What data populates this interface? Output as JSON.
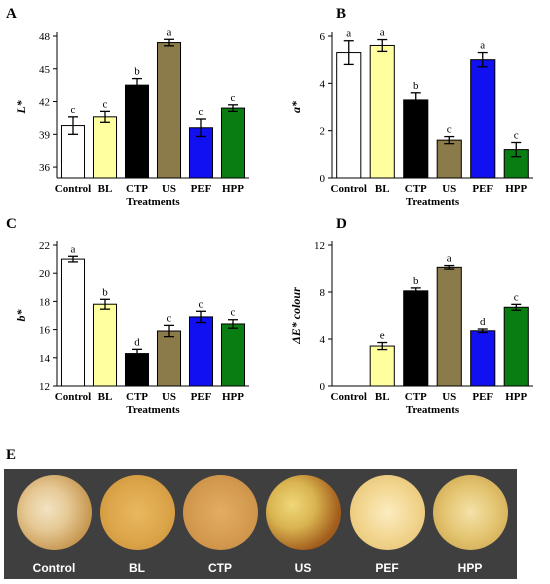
{
  "chart_data": [
    {
      "panel": "A",
      "type": "bar",
      "ylabel": "L*",
      "xlabel": "Treatments",
      "categories": [
        "Control",
        "BL",
        "CTP",
        "US",
        "PEF",
        "HPP"
      ],
      "values": [
        39.8,
        40.6,
        43.5,
        47.4,
        39.6,
        41.4
      ],
      "errors": [
        0.8,
        0.5,
        0.6,
        0.3,
        0.8,
        0.3
      ],
      "letters": [
        "c",
        "c",
        "b",
        "a",
        "c",
        "c"
      ],
      "colors": [
        "#ffffff",
        "#ffffa0",
        "#000000",
        "#8b7b4b",
        "#1010f0",
        "#0a7d12"
      ],
      "ylim": [
        35,
        48
      ],
      "yticks": [
        36,
        39,
        42,
        45,
        48
      ]
    },
    {
      "panel": "B",
      "type": "bar",
      "ylabel": "a*",
      "xlabel": "Treatments",
      "categories": [
        "Control",
        "BL",
        "CTP",
        "US",
        "PEF",
        "HPP"
      ],
      "values": [
        5.3,
        5.6,
        3.3,
        1.6,
        5.0,
        1.2
      ],
      "errors": [
        0.5,
        0.25,
        0.3,
        0.15,
        0.3,
        0.3
      ],
      "letters": [
        "a",
        "a",
        "b",
        "c",
        "a",
        "c"
      ],
      "colors": [
        "#ffffff",
        "#ffffa0",
        "#000000",
        "#8b7b4b",
        "#1010f0",
        "#0a7d12"
      ],
      "ylim": [
        0,
        6
      ],
      "yticks": [
        0,
        2,
        4,
        6
      ]
    },
    {
      "panel": "C",
      "type": "bar",
      "ylabel": "b*",
      "xlabel": "Treatments",
      "categories": [
        "Control",
        "BL",
        "CTP",
        "US",
        "PEF",
        "HPP"
      ],
      "values": [
        21.0,
        17.8,
        14.3,
        15.9,
        16.9,
        16.4
      ],
      "errors": [
        0.2,
        0.35,
        0.3,
        0.4,
        0.4,
        0.3
      ],
      "letters": [
        "a",
        "b",
        "d",
        "c",
        "c",
        "c"
      ],
      "colors": [
        "#ffffff",
        "#ffffa0",
        "#000000",
        "#8b7b4b",
        "#1010f0",
        "#0a7d12"
      ],
      "ylim": [
        12,
        22
      ],
      "yticks": [
        12,
        14,
        16,
        18,
        20,
        22
      ]
    },
    {
      "panel": "D",
      "type": "bar",
      "ylabel": "ΔE* colour",
      "xlabel": "Treatments",
      "categories": [
        "Control",
        "BL",
        "CTP",
        "US",
        "PEF",
        "HPP"
      ],
      "values": [
        0,
        3.4,
        8.1,
        10.1,
        4.7,
        6.7
      ],
      "errors": [
        0,
        0.3,
        0.25,
        0.15,
        0.15,
        0.25
      ],
      "letters": [
        "",
        "e",
        "b",
        "a",
        "d",
        "c"
      ],
      "colors": [
        "#ffffff",
        "#ffffa0",
        "#000000",
        "#8b7b4b",
        "#1010f0",
        "#0a7d12"
      ],
      "ylim": [
        0,
        12
      ],
      "yticks": [
        0,
        4,
        8,
        12
      ]
    }
  ],
  "photos": {
    "panel": "E",
    "labels": [
      "Control",
      "BL",
      "CTP",
      "US",
      "PEF",
      "HPP"
    ]
  }
}
